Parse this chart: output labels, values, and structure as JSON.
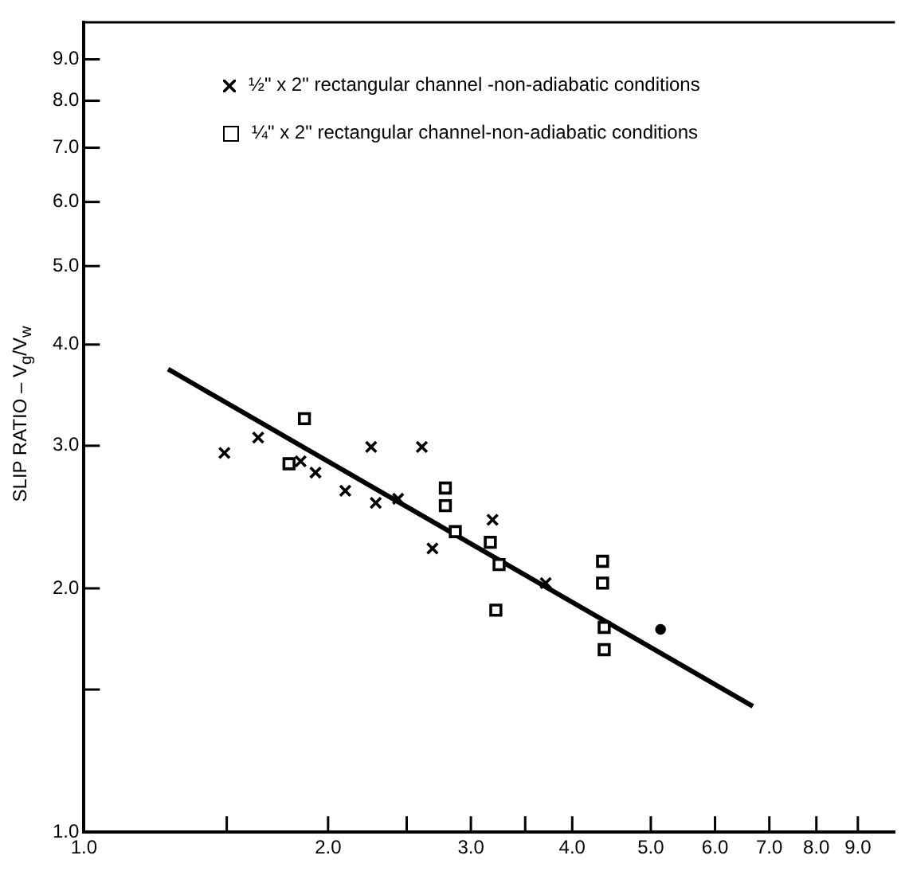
{
  "chart_data": {
    "type": "scatter",
    "ylabel": "SLIP RATIO – V$_{g}$/V$_{w}$",
    "log": "xy",
    "xlim": [
      1,
      10
    ],
    "ylim": [
      1,
      10
    ],
    "xticks": [
      {
        "value": 1,
        "label": "1.0"
      },
      {
        "value": 1.5,
        "label": null
      },
      {
        "value": 2,
        "label": "2.0"
      },
      {
        "value": 2.5,
        "label": null
      },
      {
        "value": 3,
        "label": "3.0"
      },
      {
        "value": 3.5,
        "label": null
      },
      {
        "value": 4,
        "label": "4.0"
      },
      {
        "value": 5,
        "label": "5.0"
      },
      {
        "value": 6,
        "label": "6.0"
      },
      {
        "value": 7,
        "label": "7.0"
      },
      {
        "value": 8,
        "label": "8.0"
      },
      {
        "value": 9,
        "label": "9.0"
      }
    ],
    "yticks": [
      {
        "value": 1,
        "label": "1.0"
      },
      {
        "value": 1.5,
        "label": null
      },
      {
        "value": 2,
        "label": "2.0"
      },
      {
        "value": 3,
        "label": "3.0"
      },
      {
        "value": 4,
        "label": "4.0"
      },
      {
        "value": 5,
        "label": "5.0"
      },
      {
        "value": 6,
        "label": "6.0"
      },
      {
        "value": 7,
        "label": "7.0"
      },
      {
        "value": 8,
        "label": "8.0"
      },
      {
        "value": 9,
        "label": "9.0"
      }
    ],
    "legend": "top",
    "series": [
      {
        "name": "½\" x 2\" rectangular channel -non-adiabatic conditions",
        "color": "#000000",
        "marker": "cross",
        "x": [
          1.49,
          1.64,
          1.85,
          1.93,
          2.1,
          2.26,
          2.29,
          2.44,
          2.61,
          2.69,
          3.19,
          3.71
        ],
        "values": [
          2.94,
          3.07,
          2.87,
          2.78,
          2.64,
          2.99,
          2.55,
          2.58,
          2.99,
          2.24,
          2.43,
          2.03
        ]
      },
      {
        "name": "¼\" x 2\" rectangular channel-non-adiabatic conditions",
        "color": "#000000",
        "marker": "square",
        "x": [
          1.87,
          1.79,
          2.79,
          2.79,
          2.87,
          3.17,
          3.25,
          3.22,
          4.36,
          4.36,
          4.38,
          4.38
        ],
        "values": [
          3.24,
          2.85,
          2.66,
          2.53,
          2.35,
          2.28,
          2.14,
          1.88,
          2.16,
          2.03,
          1.79,
          1.68
        ]
      },
      {
        "color": "#000000",
        "marker": "circle",
        "x": [
          5.14
        ],
        "values": [
          1.78
        ]
      },
      {
        "type": "line",
        "color": "#000000",
        "marker": "none",
        "x": [
          1.27,
          6.68
        ],
        "values": [
          3.73,
          1.43
        ]
      }
    ]
  }
}
